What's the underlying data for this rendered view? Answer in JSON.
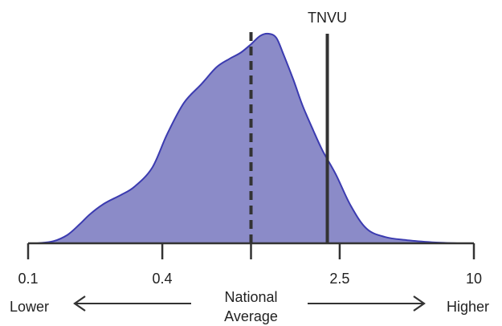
{
  "chart_data": {
    "type": "area",
    "x_scale": "log",
    "xlim": [
      0.1,
      10
    ],
    "ticks": [
      {
        "value": 0.1,
        "label": "0.1"
      },
      {
        "value": 0.4,
        "label": "0.4"
      },
      {
        "value": 1,
        "label": ""
      },
      {
        "value": 2.5,
        "label": "2.5"
      },
      {
        "value": 10,
        "label": "10"
      }
    ],
    "density": {
      "fill_color": "#8b8bc8",
      "line_color": "#3b3bb0",
      "x": [
        0.11,
        0.13,
        0.15,
        0.17,
        0.19,
        0.22,
        0.26,
        0.3,
        0.36,
        0.42,
        0.5,
        0.6,
        0.7,
        0.8,
        0.9,
        1.0,
        1.1,
        1.2,
        1.3,
        1.4,
        1.55,
        1.7,
        1.9,
        2.1,
        2.4,
        2.8,
        3.3,
        4.0,
        5.0,
        6.5,
        8.5
      ],
      "y": [
        0.0,
        0.01,
        0.04,
        0.09,
        0.14,
        0.19,
        0.23,
        0.27,
        0.36,
        0.52,
        0.67,
        0.76,
        0.84,
        0.88,
        0.91,
        0.95,
        0.99,
        1.0,
        0.98,
        0.9,
        0.78,
        0.66,
        0.54,
        0.44,
        0.33,
        0.18,
        0.07,
        0.03,
        0.015,
        0.005,
        0.0
      ]
    },
    "reference_lines": [
      {
        "value": 1.0,
        "style": "dashed",
        "label": ""
      },
      {
        "value": 2.2,
        "style": "solid",
        "label": "TNVU"
      }
    ],
    "scale_labels": {
      "lower": "Lower",
      "higher": "Higher",
      "center_line1": "National",
      "center_line2": "Average"
    }
  }
}
